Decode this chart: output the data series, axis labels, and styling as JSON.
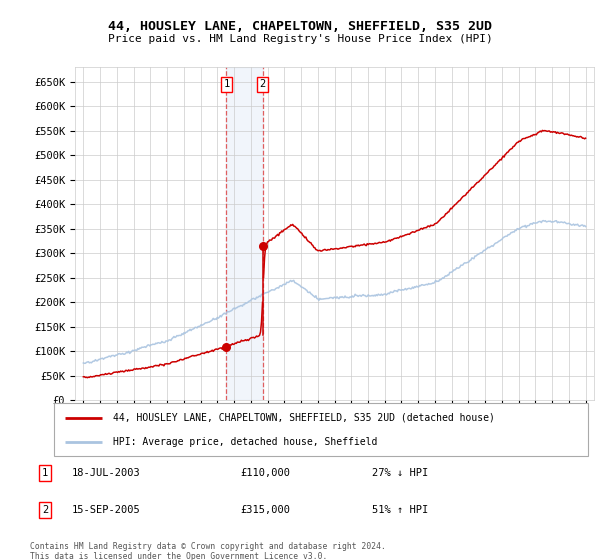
{
  "title": "44, HOUSLEY LANE, CHAPELTOWN, SHEFFIELD, S35 2UD",
  "subtitle": "Price paid vs. HM Land Registry's House Price Index (HPI)",
  "legend_line1": "44, HOUSLEY LANE, CHAPELTOWN, SHEFFIELD, S35 2UD (detached house)",
  "legend_line2": "HPI: Average price, detached house, Sheffield",
  "footer": "Contains HM Land Registry data © Crown copyright and database right 2024.\nThis data is licensed under the Open Government Licence v3.0.",
  "transaction1": {
    "label": "1",
    "date": "18-JUL-2003",
    "price": "£110,000",
    "hpi": "27% ↓ HPI"
  },
  "transaction2": {
    "label": "2",
    "date": "15-SEP-2005",
    "price": "£315,000",
    "hpi": "51% ↑ HPI"
  },
  "sale1_date_x": 2003.54,
  "sale1_price": 110000,
  "sale2_date_x": 2005.71,
  "sale2_price": 315000,
  "hpi_color": "#aac4e0",
  "price_color": "#cc0000",
  "grid_color": "#cccccc",
  "bg_color": "#ffffff",
  "shade_color": "#ddeeff",
  "ylim_min": 0,
  "ylim_max": 680000,
  "xlim_min": 1994.5,
  "xlim_max": 2025.5,
  "yticks": [
    0,
    50000,
    100000,
    150000,
    200000,
    250000,
    300000,
    350000,
    400000,
    450000,
    500000,
    550000,
    600000,
    650000
  ],
  "ytick_labels": [
    "£0",
    "£50K",
    "£100K",
    "£150K",
    "£200K",
    "£250K",
    "£300K",
    "£350K",
    "£400K",
    "£450K",
    "£500K",
    "£550K",
    "£600K",
    "£650K"
  ],
  "xticks": [
    1995,
    1996,
    1997,
    1998,
    1999,
    2000,
    2001,
    2002,
    2003,
    2004,
    2005,
    2006,
    2007,
    2008,
    2009,
    2010,
    2011,
    2012,
    2013,
    2014,
    2015,
    2016,
    2017,
    2018,
    2019,
    2020,
    2021,
    2022,
    2023,
    2024,
    2025
  ]
}
